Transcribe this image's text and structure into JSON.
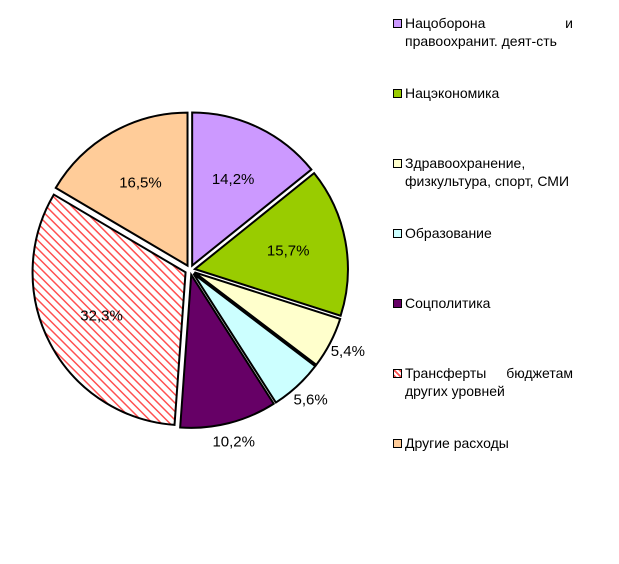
{
  "chart_data": {
    "type": "pie",
    "categories": [
      "Нацоборона и правоохранит. деят-сть",
      "Нацэкономика",
      "Здравоохранение, физкультура, спорт, СМИ",
      "Образование",
      "Соцполитика",
      "Трансферты бюджетам других уровней",
      "Другие расходы"
    ],
    "values": [
      14.2,
      15.7,
      5.4,
      5.6,
      10.2,
      32.3,
      16.5
    ],
    "value_labels": [
      "14,2%",
      "15,7%",
      "5,4%",
      "5,6%",
      "10,2%",
      "32,3%",
      "16,5%"
    ],
    "colors": [
      "#cc99ff",
      "#99cc00",
      "#ffffcc",
      "#ccffff",
      "#660066",
      "#ff5050",
      "#ffcc99"
    ],
    "hatch": [
      false,
      false,
      false,
      false,
      false,
      true,
      false
    ],
    "legend": "right"
  }
}
